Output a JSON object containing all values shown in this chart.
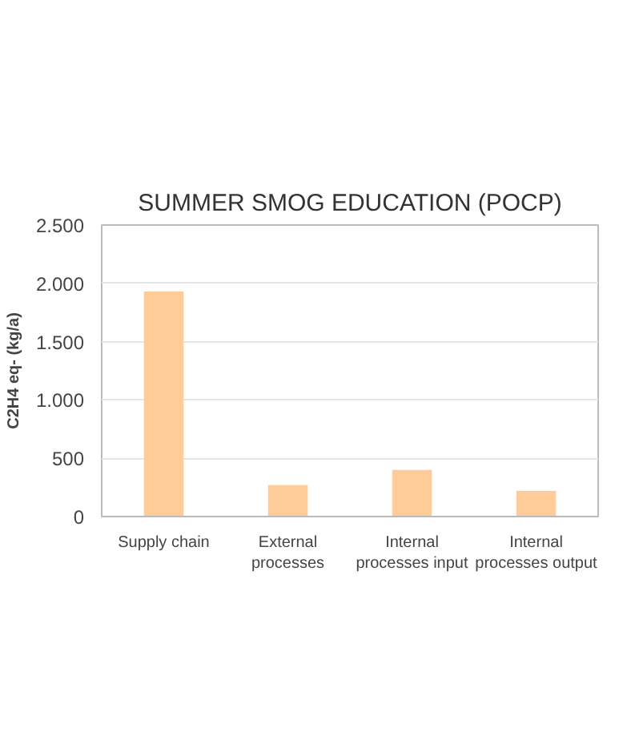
{
  "chart_data": {
    "type": "bar",
    "title": "SUMMER SMOG EDUCATION (POCP)",
    "ylabel": "C2H4 eq- (kg/a)",
    "categories": [
      "Supply chain",
      "External processes",
      "Internal processes input",
      "Internal processes output"
    ],
    "values": [
      1930,
      270,
      400,
      220
    ],
    "color": "#ffcc99",
    "ylim": [
      0,
      2500
    ],
    "yticks": [
      0,
      500,
      {
        "value": 1000,
        "label": "1.000"
      },
      {
        "value": 1500,
        "label": "1.500"
      },
      {
        "value": 2000,
        "label": "2.000"
      },
      {
        "value": 2500,
        "label": "2.500"
      }
    ],
    "grid": "y"
  }
}
